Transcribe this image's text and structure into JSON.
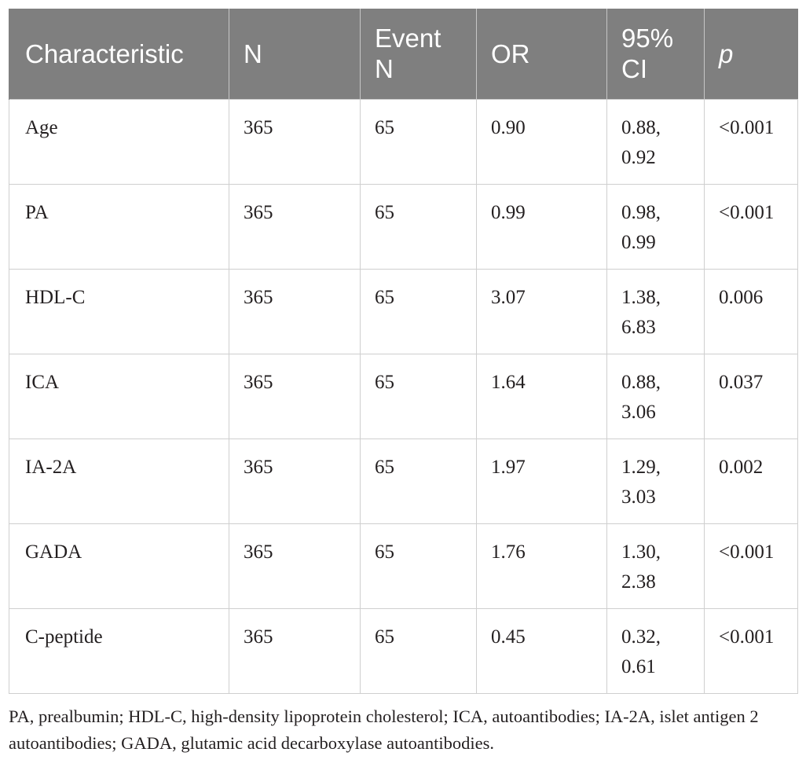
{
  "table": {
    "headers": [
      {
        "label": "Characteristic"
      },
      {
        "label": "N"
      },
      {
        "label": "Event N"
      },
      {
        "label": "OR"
      },
      {
        "label": "95% CI"
      },
      {
        "label": "p"
      }
    ],
    "rows": [
      {
        "characteristic": "Age",
        "n": "365",
        "event_n": "65",
        "or": "0.90",
        "ci": "0.88, 0.92",
        "p": "<0.001"
      },
      {
        "characteristic": "PA",
        "n": "365",
        "event_n": "65",
        "or": "0.99",
        "ci": "0.98, 0.99",
        "p": "<0.001"
      },
      {
        "characteristic": "HDL-C",
        "n": "365",
        "event_n": "65",
        "or": "3.07",
        "ci": "1.38, 6.83",
        "p": "0.006"
      },
      {
        "characteristic": "ICA",
        "n": "365",
        "event_n": "65",
        "or": "1.64",
        "ci": "0.88, 3.06",
        "p": "0.037"
      },
      {
        "characteristic": "IA-2A",
        "n": "365",
        "event_n": "65",
        "or": "1.97",
        "ci": "1.29, 3.03",
        "p": "0.002"
      },
      {
        "characteristic": "GADA",
        "n": "365",
        "event_n": "65",
        "or": "1.76",
        "ci": "1.30, 2.38",
        "p": "<0.001"
      },
      {
        "characteristic": "C-peptide",
        "n": "365",
        "event_n": "65",
        "or": "0.45",
        "ci": "0.32, 0.61",
        "p": "<0.001"
      }
    ]
  },
  "footnote": "PA, prealbumin; HDL-C, high-density lipoprotein cholesterol; ICA, autoantibodies; IA-2A, islet antigen 2 autoantibodies; GADA, glutamic acid decarboxylase autoantibodies."
}
